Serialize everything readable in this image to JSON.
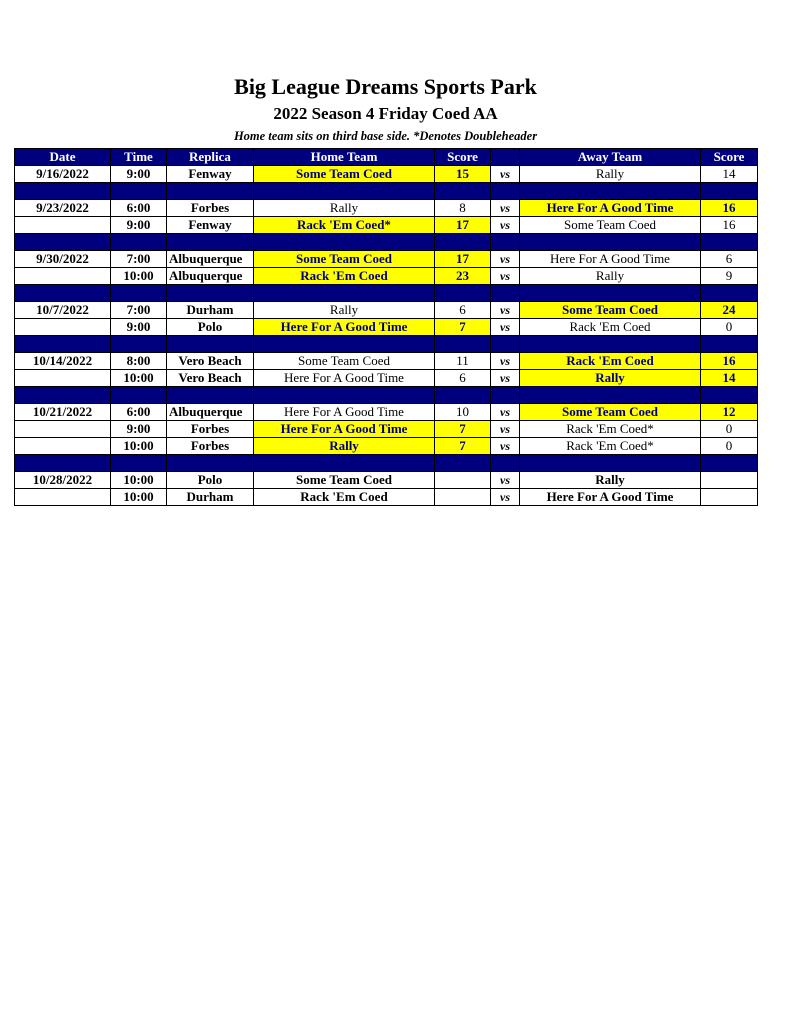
{
  "title": "Big League Dreams Sports Park",
  "subtitle": "2022 Season 4 Friday Coed AA",
  "note": "Home team sits on third base side.  *Denotes Doubleheader",
  "headers": [
    "Date",
    "Time",
    "Replica",
    "Home Team",
    "Score",
    "",
    "Away Team",
    "Score"
  ],
  "colors": {
    "header": "#00007f",
    "winner": "#ffff00"
  },
  "groups": [
    {
      "games": [
        {
          "date": "9/16/2022",
          "time": "9:00",
          "replica": "Fenway",
          "home": "Some Team Coed",
          "home_score": "15",
          "vs": "vs",
          "away": "Rally",
          "away_score": "14",
          "winner": "home"
        }
      ]
    },
    {
      "games": [
        {
          "date": "9/23/2022",
          "time": "6:00",
          "replica": "Forbes",
          "home": "Rally",
          "home_score": "8",
          "vs": "vs",
          "away": "Here For A Good Time",
          "away_score": "16",
          "winner": "away"
        },
        {
          "date": "",
          "time": "9:00",
          "replica": "Fenway",
          "home": "Rack 'Em Coed*",
          "home_score": "17",
          "vs": "vs",
          "away": "Some Team Coed",
          "away_score": "16",
          "winner": "home"
        }
      ]
    },
    {
      "games": [
        {
          "date": "9/30/2022",
          "time": "7:00",
          "replica": "Albuquerque",
          "home": "Some Team Coed",
          "home_score": "17",
          "vs": "vs",
          "away": "Here For A Good Time",
          "away_score": "6",
          "winner": "home"
        },
        {
          "date": "",
          "time": "10:00",
          "replica": "Albuquerque",
          "home": "Rack 'Em Coed",
          "home_score": "23",
          "vs": "vs",
          "away": "Rally",
          "away_score": "9",
          "winner": "home"
        }
      ]
    },
    {
      "games": [
        {
          "date": "10/7/2022",
          "time": "7:00",
          "replica": "Durham",
          "home": "Rally",
          "home_score": "6",
          "vs": "vs",
          "away": "Some Team Coed",
          "away_score": "24",
          "winner": "away"
        },
        {
          "date": "",
          "time": "9:00",
          "replica": "Polo",
          "home": "Here For A Good Time",
          "home_score": "7",
          "vs": "vs",
          "away": "Rack 'Em Coed",
          "away_score": "0",
          "winner": "home"
        }
      ]
    },
    {
      "games": [
        {
          "date": "10/14/2022",
          "time": "8:00",
          "replica": "Vero Beach",
          "home": "Some Team Coed",
          "home_score": "11",
          "vs": "vs",
          "away": "Rack 'Em Coed",
          "away_score": "16",
          "winner": "away"
        },
        {
          "date": "",
          "time": "10:00",
          "replica": "Vero Beach",
          "home": "Here For A Good Time",
          "home_score": "6",
          "vs": "vs",
          "away": "Rally",
          "away_score": "14",
          "winner": "away"
        }
      ]
    },
    {
      "games": [
        {
          "date": "10/21/2022",
          "time": "6:00",
          "replica": "Albuquerque",
          "home": "Here For A Good Time",
          "home_score": "10",
          "vs": "vs",
          "away": "Some Team Coed",
          "away_score": "12",
          "winner": "away"
        },
        {
          "date": "",
          "time": "9:00",
          "replica": "Forbes",
          "home": "Here For A Good Time",
          "home_score": "7",
          "vs": "vs",
          "away": "Rack 'Em Coed*",
          "away_score": "0",
          "winner": "home"
        },
        {
          "date": "",
          "time": "10:00",
          "replica": "Forbes",
          "home": "Rally",
          "home_score": "7",
          "vs": "vs",
          "away": "Rack 'Em Coed*",
          "away_score": "0",
          "winner": "home"
        }
      ]
    },
    {
      "games": [
        {
          "date": "10/28/2022",
          "time": "10:00",
          "replica": "Polo",
          "home": "Some Team Coed",
          "home_score": "",
          "vs": "vs",
          "away": "Rally",
          "away_score": "",
          "winner": "none"
        },
        {
          "date": "",
          "time": "10:00",
          "replica": "Durham",
          "home": "Rack 'Em Coed",
          "home_score": "",
          "vs": "vs",
          "away": "Here For A Good Time",
          "away_score": "",
          "winner": "none"
        }
      ]
    }
  ]
}
